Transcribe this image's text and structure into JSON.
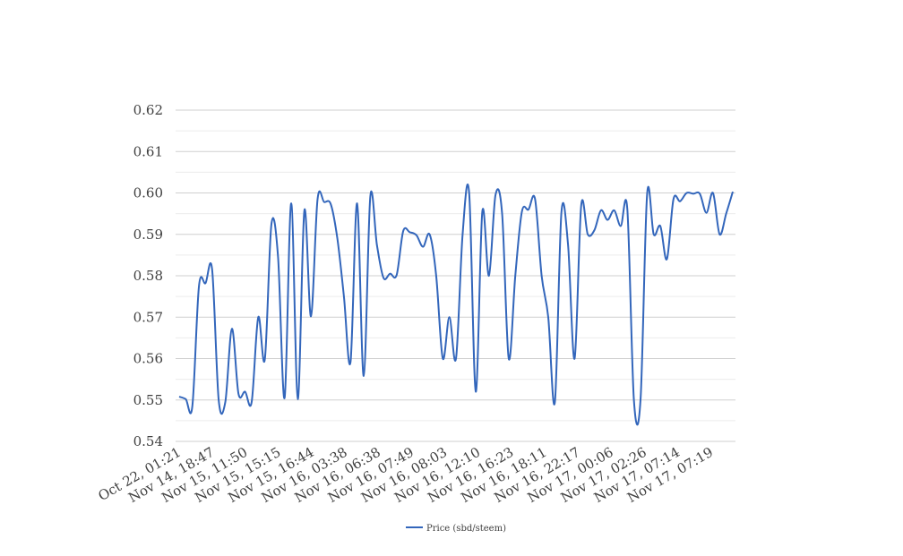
{
  "chart_data": {
    "type": "line",
    "title": "",
    "xlabel": "",
    "ylabel": "",
    "ylim": [
      0.54,
      0.62
    ],
    "y_ticks": [
      "0.54",
      "0.55",
      "0.56",
      "0.57",
      "0.58",
      "0.59",
      "0.60",
      "0.61",
      "0.62"
    ],
    "y_tick_values": [
      0.54,
      0.55,
      0.56,
      0.57,
      0.58,
      0.59,
      0.6,
      0.61,
      0.62
    ],
    "x_tick_labels": [
      "Oct 22, 01:21",
      "Nov 14, 18:47",
      "Nov 15, 11:50",
      "Nov 15, 15:15",
      "Nov 15, 16:44",
      "Nov 16, 03:38",
      "Nov 16, 06:38",
      "Nov 16, 07:49",
      "Nov 16, 08:03",
      "Nov 16, 12:10",
      "Nov 16, 16:23",
      "Nov 16, 18:11",
      "Nov 16, 22:17",
      "Nov 17, 00:06",
      "Nov 17, 02:26",
      "Nov 17, 07:14",
      "Nov 17, 07:19"
    ],
    "grid": true,
    "legend_position": "bottom",
    "series": [
      {
        "name": "Price (sbd/steem)",
        "color": "#3366bb",
        "values": [
          0.5508,
          0.5502,
          0.5485,
          0.5775,
          0.5782,
          0.5815,
          0.55,
          0.5495,
          0.5672,
          0.5515,
          0.552,
          0.5495,
          0.57,
          0.5598,
          0.5925,
          0.5845,
          0.5505,
          0.5975,
          0.5502,
          0.5958,
          0.5702,
          0.5985,
          0.5978,
          0.5973,
          0.589,
          0.575,
          0.5592,
          0.5975,
          0.5558,
          0.5992,
          0.5875,
          0.5795,
          0.5805,
          0.5802,
          0.5908,
          0.5905,
          0.5898,
          0.587,
          0.59,
          0.58,
          0.56,
          0.57,
          0.56,
          0.59,
          0.6,
          0.552,
          0.5955,
          0.58,
          0.5995,
          0.595,
          0.56,
          0.58,
          0.5955,
          0.596,
          0.5985,
          0.58,
          0.57,
          0.5495,
          0.5953,
          0.5875,
          0.56,
          0.597,
          0.59,
          0.591,
          0.5958,
          0.5935,
          0.5958,
          0.592,
          0.596,
          0.55,
          0.55,
          0.5998,
          0.59,
          0.592,
          0.584,
          0.5985,
          0.598,
          0.6,
          0.5998,
          0.5998,
          0.5952,
          0.6,
          0.59,
          0.595,
          0.6003
        ]
      }
    ]
  }
}
